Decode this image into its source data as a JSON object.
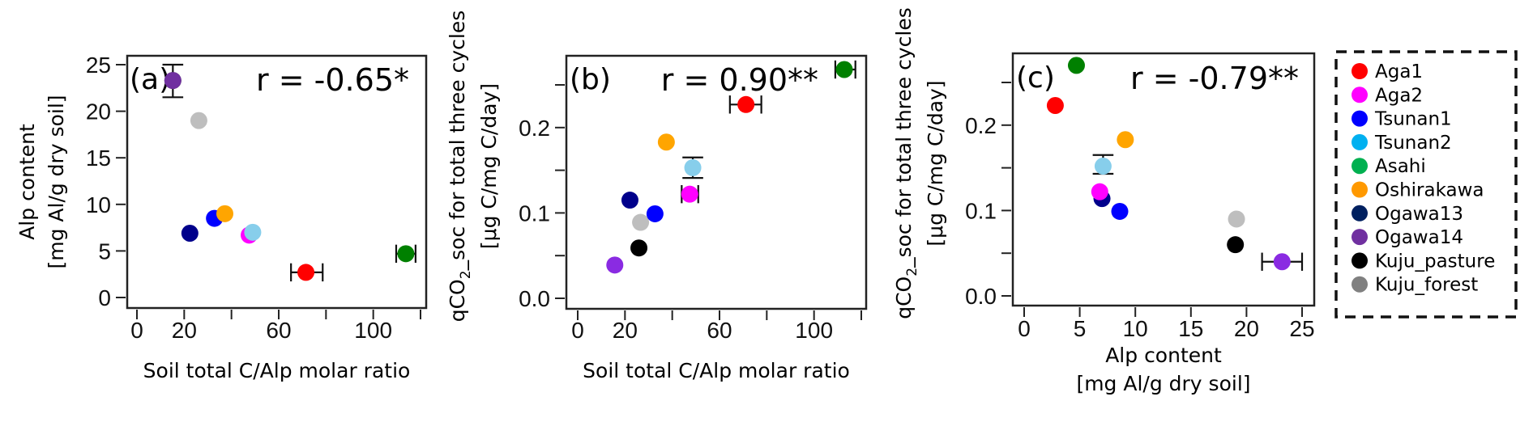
{
  "chart_data": [
    {
      "type": "scatter",
      "panel_label": "(a)",
      "annotation": "r = -0.65*",
      "xlabel": "Soil total C/Alp molar ratio",
      "ylabel_lines": [
        "Alp content",
        "[mg Al/g dry soil]"
      ],
      "xlim": [
        0,
        120
      ],
      "ylim": [
        0,
        25
      ],
      "xticks": [
        0,
        20,
        40,
        60,
        80,
        100,
        120
      ],
      "xtick_labels": [
        "0",
        "20",
        "",
        "60",
        "",
        "100",
        ""
      ],
      "yticks": [
        0,
        5,
        10,
        15,
        20,
        25
      ],
      "ytick_labels": [
        "0",
        "5",
        "10",
        "15",
        "20",
        "25"
      ],
      "points": [
        {
          "site": "Aga1",
          "x": 71.5,
          "y": 2.7,
          "xerr": [
            65.2,
            78.6
          ]
        },
        {
          "site": "Aga2",
          "x": 47.5,
          "y": 6.7
        },
        {
          "site": "Tsunan1",
          "x": 32.8,
          "y": 8.5
        },
        {
          "site": "Tsunan2",
          "x": 49.0,
          "y": 7.0
        },
        {
          "site": "Asahi",
          "x": 113.8,
          "y": 4.7,
          "xerr": [
            109.7,
            117.9
          ]
        },
        {
          "site": "Oshirakawa",
          "x": 37.2,
          "y": 9.0
        },
        {
          "site": "Ogawa13",
          "x": 22.4,
          "y": 6.9
        },
        {
          "site": "Ogawa14",
          "x": 15.2,
          "y": 23.3,
          "yerr": [
            21.5,
            25.0
          ]
        },
        {
          "site": "Kuju_pasture",
          "x": 15.2,
          "y": 23.3
        },
        {
          "site": "Kuju_forest",
          "x": 26.2,
          "y": 19.0
        }
      ]
    },
    {
      "type": "scatter",
      "panel_label": "(b)",
      "annotation": "r = 0.90**",
      "xlabel": "Soil total C/Alp molar ratio",
      "ylabel_main": "qCO",
      "ylabel_sub": "2",
      "ylabel_rest": "_soc for total three cycles",
      "ylabel_line2": "[μg C/mg C/day]",
      "xlim": [
        0,
        120
      ],
      "ylim": [
        0,
        0.25
      ],
      "xticks": [
        0,
        20,
        40,
        60,
        80,
        100,
        120
      ],
      "xtick_labels": [
        "0",
        "20",
        "",
        "60",
        "",
        "100",
        ""
      ],
      "yticks": [
        0,
        0.05,
        0.1,
        0.15,
        0.2,
        0.25
      ],
      "ytick_labels": [
        "0.0",
        "",
        "0.1",
        "",
        "0.2",
        ""
      ],
      "points": [
        {
          "site": "Aga1",
          "x": 71.2,
          "y": 0.227,
          "xerr": [
            64.4,
            77.7
          ]
        },
        {
          "site": "Aga2",
          "x": 47.4,
          "y": 0.122,
          "xerr": [
            44.0,
            51.0
          ]
        },
        {
          "site": "Tsunan1",
          "x": 32.7,
          "y": 0.099
        },
        {
          "site": "Tsunan2",
          "x": 48.7,
          "y": 0.153,
          "yerr": [
            0.141,
            0.165
          ]
        },
        {
          "site": "Asahi",
          "x": 112.8,
          "y": 0.268,
          "xerr": [
            109.0,
            117.5
          ]
        },
        {
          "site": "Oshirakawa",
          "x": 37.5,
          "y": 0.183
        },
        {
          "site": "Ogawa13",
          "x": 22.1,
          "y": 0.115
        },
        {
          "site": "Ogawa14",
          "x": 15.7,
          "y": 0.039
        },
        {
          "site": "Kuju_pasture",
          "x": 25.9,
          "y": 0.059
        },
        {
          "site": "Kuju_forest",
          "x": 26.6,
          "y": 0.089
        }
      ]
    },
    {
      "type": "scatter",
      "panel_label": "(c)",
      "annotation": "r = -0.79**",
      "xlabel_lines": [
        "Alp content",
        "[mg Al/g dry soil]"
      ],
      "ylabel_main": "qCO",
      "ylabel_sub": "2",
      "ylabel_rest": "_soc for total three cycles",
      "ylabel_line2": "[μg C/mg C/day]",
      "xlim": [
        0,
        25
      ],
      "ylim": [
        0,
        0.25
      ],
      "xticks": [
        0,
        5,
        10,
        15,
        20,
        25
      ],
      "xtick_labels": [
        "0",
        "5",
        "10",
        "15",
        "20",
        "25"
      ],
      "yticks": [
        0,
        0.05,
        0.1,
        0.15,
        0.2,
        0.25
      ],
      "ytick_labels": [
        "0.0",
        "",
        "0.1",
        "",
        "0.2",
        ""
      ],
      "points": [
        {
          "site": "Aga1",
          "x": 2.8,
          "y": 0.223
        },
        {
          "site": "Aga2",
          "x": 6.8,
          "y": 0.122
        },
        {
          "site": "Tsunan1",
          "x": 8.6,
          "y": 0.099
        },
        {
          "site": "Tsunan2",
          "x": 7.1,
          "y": 0.152,
          "yerr": [
            0.143,
            0.165
          ]
        },
        {
          "site": "Asahi",
          "x": 4.7,
          "y": 0.27
        },
        {
          "site": "Oshirakawa",
          "x": 9.1,
          "y": 0.183
        },
        {
          "site": "Ogawa13",
          "x": 7.0,
          "y": 0.114
        },
        {
          "site": "Ogawa14",
          "x": 23.2,
          "y": 0.04,
          "xerr": [
            21.4,
            25.0
          ]
        },
        {
          "site": "Kuju_pasture",
          "x": 19.0,
          "y": 0.06
        },
        {
          "site": "Kuju_forest",
          "x": 19.1,
          "y": 0.09
        }
      ]
    }
  ],
  "legend": {
    "placement": "right",
    "items": [
      {
        "label": "Aga1",
        "color": "#ff0000"
      },
      {
        "label": "Aga2",
        "color": "#ff00ff"
      },
      {
        "label": "Tsunan1",
        "color": "#0000ff"
      },
      {
        "label": "Tsunan2",
        "color": "#00b0f0"
      },
      {
        "label": "Asahi",
        "color": "#00b050"
      },
      {
        "label": "Oshirakawa",
        "color": "#ff9900"
      },
      {
        "label": "Ogawa13",
        "color": "#002060"
      },
      {
        "label": "Ogawa14",
        "color": "#7030a0"
      },
      {
        "label": "Kuju_pasture",
        "color": "#000000"
      },
      {
        "label": "Kuju_forest",
        "color": "#808080"
      }
    ]
  },
  "marker_colors": {
    "Aga1": "#ff0000",
    "Aga2": "#ff00ff",
    "Tsunan1": "#0000ff",
    "Tsunan2": "#87ceeb",
    "Asahi": "#008000",
    "Oshirakawa": "#ffa500",
    "Ogawa13": "#00008b",
    "Ogawa14": "#8a2be2",
    "Kuju_pasture": "#000000",
    "Kuju_forest": "#bebebe"
  },
  "panel_a_ogawa14_color": "#7030a0"
}
